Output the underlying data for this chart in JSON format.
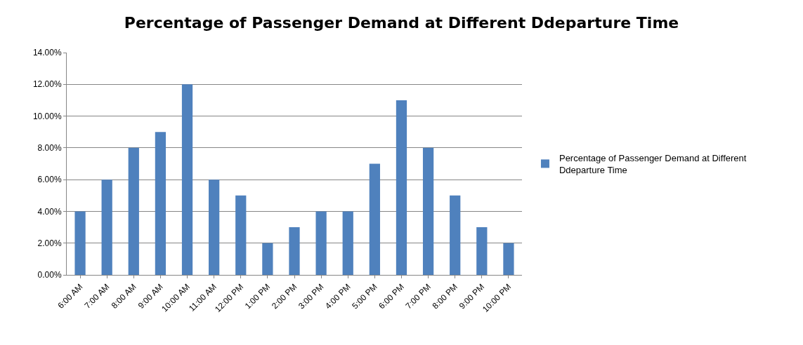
{
  "chart_data": {
    "type": "bar",
    "title": "Percentage of Passenger Demand at Different Ddeparture Time",
    "categories": [
      "6:00 AM",
      "7:00 AM",
      "8:00 AM",
      "9:00 AM",
      "10:00 AM",
      "11:00 AM",
      "12:00 PM",
      "1:00 PM",
      "2:00 PM",
      "3:00 PM",
      "4:00 PM",
      "5:00 PM",
      "6:00 PM",
      "7:00 PM",
      "8:00 PM",
      "9:00 PM",
      "10:00 PM"
    ],
    "series": [
      {
        "name": "Percentage of Passenger Demand at Different Ddeparture Time",
        "color": "#4f81bd",
        "values": [
          4,
          6,
          8,
          9,
          12,
          6,
          5,
          2,
          3,
          4,
          4,
          7,
          11,
          8,
          5,
          3,
          2
        ]
      }
    ],
    "ylim": [
      0,
      14
    ],
    "yticks": [
      {
        "value": 0,
        "label": "0.00%"
      },
      {
        "value": 2,
        "label": "2.00%"
      },
      {
        "value": 4,
        "label": "4.00%"
      },
      {
        "value": 6,
        "label": "6.00%"
      },
      {
        "value": 8,
        "label": "8.00%"
      },
      {
        "value": 10,
        "label": "10.00%"
      },
      {
        "value": 12,
        "label": "12.00%"
      },
      {
        "value": 14,
        "label": "14.00%"
      }
    ],
    "grid": "y",
    "legend": "right"
  }
}
